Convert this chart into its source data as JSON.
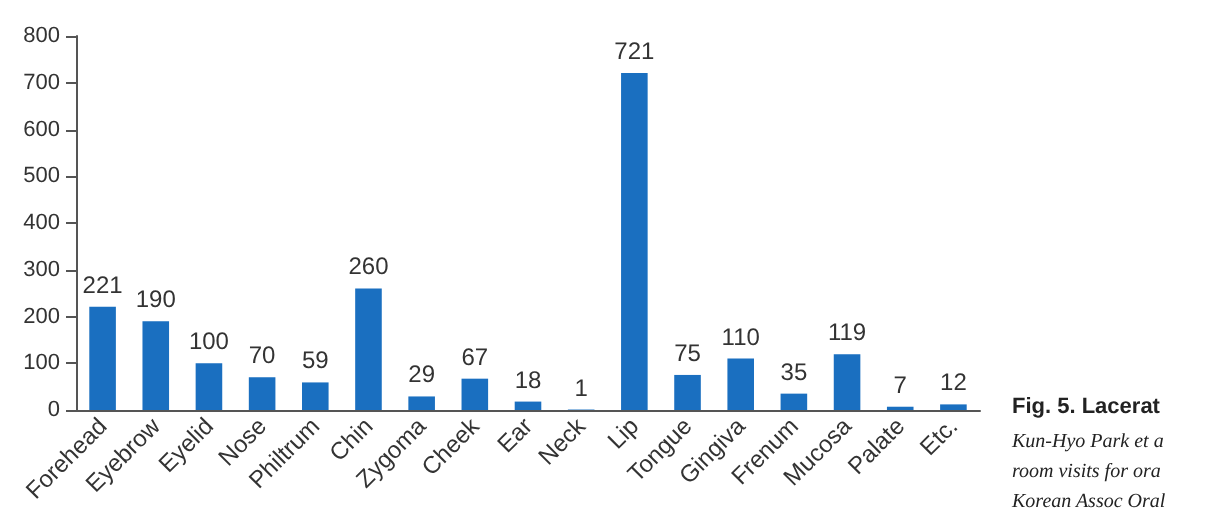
{
  "chart_data": {
    "type": "bar",
    "categories": [
      "Forehead",
      "Eyebrow",
      "Eyelid",
      "Nose",
      "Philtrum",
      "Chin",
      "Zygoma",
      "Cheek",
      "Ear",
      "Neck",
      "Lip",
      "Tongue",
      "Gingiva",
      "Frenum",
      "Mucosa",
      "Palate",
      "Etc."
    ],
    "values": [
      221,
      190,
      100,
      70,
      59,
      260,
      29,
      67,
      18,
      1,
      721,
      75,
      110,
      35,
      119,
      7,
      12
    ],
    "color": "#1a6fc0",
    "ylim": [
      0,
      800
    ],
    "yticks": [
      0,
      100,
      200,
      300,
      400,
      500,
      600,
      700,
      800
    ],
    "grid": false,
    "data_labels": true,
    "annotations": [
      "Fig. 5. Lacerat",
      "Kun-Hyo Park et a",
      "room visits for ora",
      "Korean Assoc Oral"
    ]
  }
}
